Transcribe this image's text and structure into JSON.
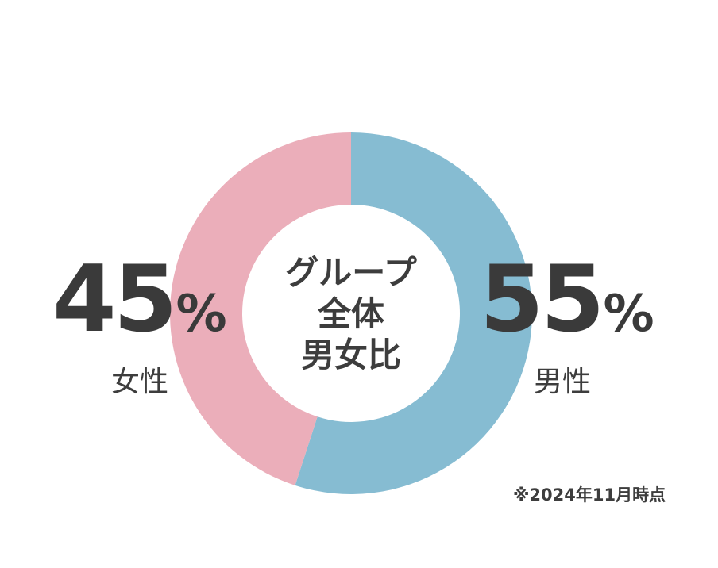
{
  "chart_data": {
    "type": "pie",
    "variant": "donut",
    "title": "グループ全体男女比",
    "title_lines": [
      "グループ",
      "全体",
      "男女比"
    ],
    "unit": "%",
    "series": [
      {
        "name": "男性",
        "value": 55,
        "color": "#86bcd2"
      },
      {
        "name": "女性",
        "value": 45,
        "color": "#ebaeba"
      }
    ],
    "start": "top",
    "direction": "clockwise",
    "footnote": "※2024年11月時点"
  }
}
